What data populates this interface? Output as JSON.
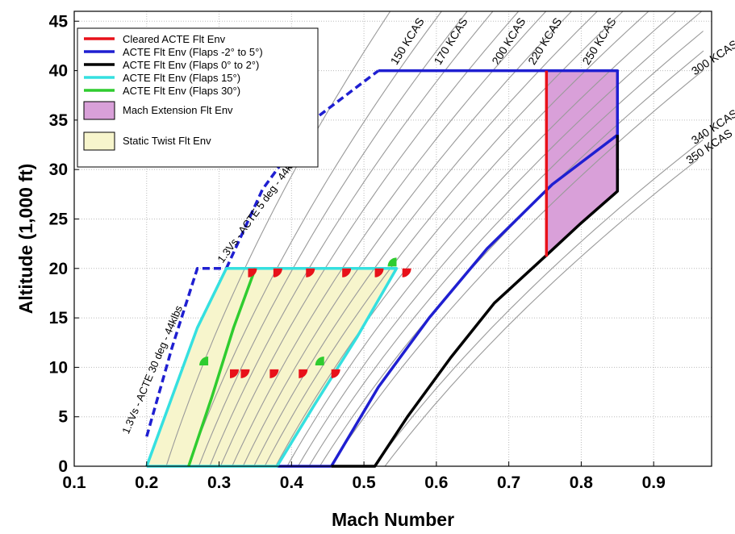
{
  "chart_data": {
    "type": "line",
    "xlabel": "Mach Number",
    "ylabel": "Altitude (1,000 ft)",
    "xlim": [
      0.1,
      0.98
    ],
    "ylim": [
      0,
      46
    ],
    "x_ticks": [
      "0.1",
      "0.2",
      "0.3",
      "0.4",
      "0.5",
      "0.6",
      "0.7",
      "0.8",
      "0.9"
    ],
    "y_ticks": [
      "0",
      "5",
      "10",
      "15",
      "20",
      "25",
      "30",
      "35",
      "40",
      "45"
    ],
    "grid": true,
    "legend_position": "top-left",
    "legend": [
      {
        "label": "Cleared ACTE Flt Env",
        "color": "#e8111a",
        "kind": "line"
      },
      {
        "label": "ACTE Flt Env (Flaps -2° to 5°)",
        "color": "#1f1fd1",
        "kind": "line"
      },
      {
        "label": "ACTE Flt Env (Flaps 0° to 2°)",
        "color": "#000000",
        "kind": "line"
      },
      {
        "label": "ACTE Flt Env (Flaps 15°)",
        "color": "#35e0e0",
        "kind": "line"
      },
      {
        "label": "ACTE Flt Env (Flaps 30°)",
        "color": "#2fcc2f",
        "kind": "line"
      },
      {
        "label": "Mach Extension Flt Env",
        "color": "#d9a0d9",
        "kind": "patch"
      },
      {
        "label": "Static Twist Flt Env",
        "color": "#f7f5cc",
        "kind": "patch"
      }
    ],
    "kcas_lines": [
      {
        "label": "150 KCAS",
        "mach_at_sea_level": 0.227,
        "label_mach": 0.545,
        "label_alt": 40.5
      },
      {
        "label": "170 KCAS",
        "mach_at_sea_level": 0.257,
        "label_mach": 0.605,
        "label_alt": 40.5
      },
      {
        "label": "200 KCAS",
        "mach_at_sea_level": 0.302,
        "label_mach": 0.685,
        "label_alt": 40.5
      },
      {
        "label": "220 KCAS",
        "mach_at_sea_level": 0.333,
        "label_mach": 0.735,
        "label_alt": 40.5
      },
      {
        "label": "250 KCAS",
        "mach_at_sea_level": 0.378,
        "label_mach": 0.81,
        "label_alt": 40.5
      },
      {
        "label": "300 KCAS",
        "mach_at_sea_level": 0.454,
        "label_mach": null,
        "label_alt": null
      },
      {
        "label": "340 KCAS",
        "mach_at_sea_level": 0.514,
        "label_mach": null,
        "label_alt": null
      },
      {
        "label": "350 KCAS",
        "mach_at_sea_level": 0.529,
        "label_mach": null,
        "label_alt": null
      },
      {
        "label": "",
        "mach_at_sea_level": 0.272,
        "label_mach": null,
        "label_alt": null
      },
      {
        "label": "",
        "mach_at_sea_level": 0.287,
        "label_mach": null,
        "label_alt": null
      },
      {
        "label": "",
        "mach_at_sea_level": 0.318,
        "label_mach": null,
        "label_alt": null
      },
      {
        "label": "",
        "mach_at_sea_level": 0.348,
        "label_mach": null,
        "label_alt": null
      },
      {
        "label": "",
        "mach_at_sea_level": 0.363,
        "label_mach": null,
        "label_alt": null
      },
      {
        "label": "",
        "mach_at_sea_level": 0.394,
        "label_mach": null,
        "label_alt": null
      },
      {
        "label": "",
        "mach_at_sea_level": 0.409,
        "label_mach": null,
        "label_alt": null
      },
      {
        "label": "",
        "mach_at_sea_level": 0.424,
        "label_mach": null,
        "label_alt": null
      },
      {
        "label": "",
        "mach_at_sea_level": 0.439,
        "label_mach": null,
        "label_alt": null
      }
    ],
    "series": [
      {
        "name": "ACTE Flt Env (Flaps -2° to 5°)",
        "color": "#1f1fd1",
        "segments": [
          {
            "style": "dashed",
            "points": [
              [
                0.2,
                3
              ],
              [
                0.235,
                12
              ],
              [
                0.27,
                20
              ],
              [
                0.31,
                20
              ]
            ]
          },
          {
            "style": "dashed",
            "points": [
              [
                0.31,
                20
              ],
              [
                0.36,
                28
              ],
              [
                0.43,
                35
              ],
              [
                0.52,
                40
              ]
            ]
          },
          {
            "style": "solid",
            "points": [
              [
                0.52,
                40
              ],
              [
                0.85,
                40
              ],
              [
                0.85,
                27.8
              ]
            ]
          },
          {
            "style": "solid",
            "points": [
              [
                0.455,
                0
              ],
              [
                0.52,
                8
              ],
              [
                0.59,
                15
              ],
              [
                0.67,
                22
              ],
              [
                0.76,
                28.5
              ],
              [
                0.85,
                33.5
              ]
            ]
          },
          {
            "style": "solid",
            "points": [
              [
                0.38,
                0
              ],
              [
                0.455,
                0
              ]
            ]
          }
        ]
      },
      {
        "name": "ACTE Flt Env (Flaps 0° to 2°)",
        "color": "#000000",
        "segments": [
          {
            "style": "solid",
            "points": [
              [
                0.455,
                0
              ],
              [
                0.515,
                0
              ],
              [
                0.56,
                5
              ],
              [
                0.62,
                11
              ],
              [
                0.68,
                16.5
              ],
              [
                0.75,
                21.2
              ],
              [
                0.8,
                24.6
              ],
              [
                0.85,
                27.8
              ],
              [
                0.85,
                33.5
              ]
            ]
          }
        ]
      },
      {
        "name": "Cleared ACTE Flt Env",
        "color": "#e8111a",
        "segments": [
          {
            "style": "solid",
            "points": [
              [
                0.752,
                40
              ],
              [
                0.752,
                21.2
              ]
            ]
          }
        ]
      },
      {
        "name": "ACTE Flt Env (Flaps 15°)",
        "color": "#35e0e0",
        "segments": [
          {
            "style": "solid",
            "points": [
              [
                0.2,
                0
              ],
              [
                0.38,
                0
              ],
              [
                0.43,
                6
              ],
              [
                0.49,
                13
              ],
              [
                0.545,
                20
              ],
              [
                0.31,
                20
              ],
              [
                0.27,
                14
              ],
              [
                0.235,
                7
              ],
              [
                0.2,
                0
              ]
            ]
          }
        ]
      },
      {
        "name": "ACTE Flt Env (Flaps 30°)",
        "color": "#2fcc2f",
        "segments": [
          {
            "style": "solid",
            "points": [
              [
                0.258,
                0
              ],
              [
                0.29,
                7
              ],
              [
                0.32,
                14
              ],
              [
                0.35,
                20
              ]
            ]
          }
        ]
      }
    ],
    "regions": [
      {
        "name": "Mach Extension Flt Env",
        "color": "#d9a0d9",
        "points": [
          [
            0.752,
            40
          ],
          [
            0.85,
            40
          ],
          [
            0.85,
            27.8
          ],
          [
            0.8,
            24.6
          ],
          [
            0.752,
            21.2
          ]
        ]
      },
      {
        "name": "Static Twist Flt Env",
        "color": "#f7f5cc",
        "points": [
          [
            0.2,
            0
          ],
          [
            0.38,
            0
          ],
          [
            0.43,
            6
          ],
          [
            0.49,
            13
          ],
          [
            0.545,
            20
          ],
          [
            0.31,
            20
          ],
          [
            0.27,
            14
          ],
          [
            0.235,
            7
          ],
          [
            0.2,
            0
          ]
        ]
      }
    ],
    "test_points": [
      {
        "mach": 0.285,
        "alt": 10.2,
        "flaps": "30"
      },
      {
        "mach": 0.315,
        "alt": 9.8,
        "flaps": "5"
      },
      {
        "mach": 0.34,
        "alt": 20,
        "flaps": "5"
      },
      {
        "mach": 0.375,
        "alt": 20,
        "flaps": "5"
      },
      {
        "mach": 0.42,
        "alt": 20,
        "flaps": "5"
      },
      {
        "mach": 0.47,
        "alt": 20,
        "flaps": "5"
      },
      {
        "mach": 0.515,
        "alt": 20,
        "flaps": "5"
      },
      {
        "mach": 0.553,
        "alt": 20,
        "flaps": "5"
      },
      {
        "mach": 0.545,
        "alt": 20.2,
        "flaps": "30"
      },
      {
        "mach": 0.33,
        "alt": 9.8,
        "flaps": "5"
      },
      {
        "mach": 0.37,
        "alt": 9.8,
        "flaps": "5"
      },
      {
        "mach": 0.41,
        "alt": 9.8,
        "flaps": "5"
      },
      {
        "mach": 0.445,
        "alt": 10.2,
        "flaps": "30"
      },
      {
        "mach": 0.455,
        "alt": 9.8,
        "flaps": "5"
      }
    ],
    "annotations": [
      {
        "text": "1.3Vs - ACTE 30 deg - 44klbs",
        "mach": 0.175,
        "alt": 3.2,
        "angle": -67
      },
      {
        "text": "1.3Vs - ACTE 5 deg - 44klbs",
        "mach": 0.305,
        "alt": 20.5,
        "angle": -54
      }
    ]
  }
}
